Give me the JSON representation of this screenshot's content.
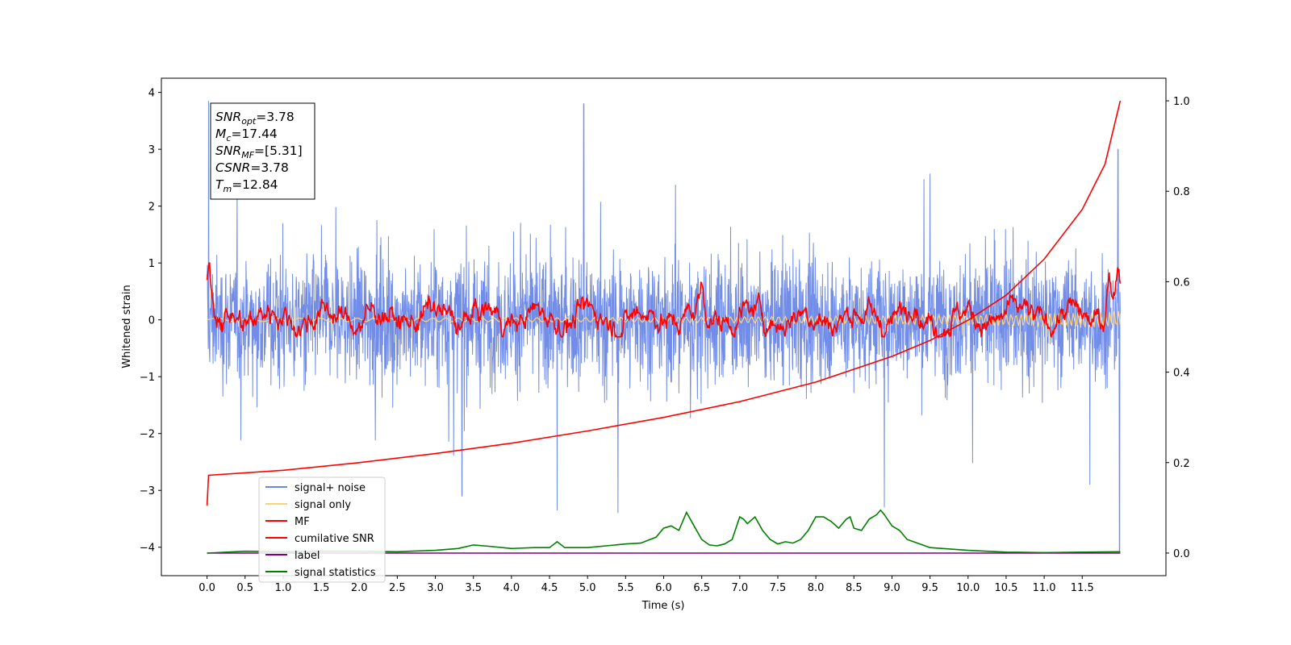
{
  "chart_data": {
    "type": "line",
    "xlabel": "Time (s)",
    "ylabel": "Whitened strain",
    "xlim": [
      -0.6,
      12.6
    ],
    "x_ticks": [
      "0.0",
      "0.5",
      "1.0",
      "1.5",
      "2.0",
      "2.5",
      "3.0",
      "3.5",
      "4.0",
      "4.5",
      "5.0",
      "5.5",
      "6.0",
      "6.5",
      "7.0",
      "7.5",
      "8.0",
      "8.5",
      "9.0",
      "9.5",
      "10.0",
      "10.5",
      "11.0",
      "11.5"
    ],
    "ylim_left": [
      -4.5,
      4.25
    ],
    "y_ticks_left": [
      "−4",
      "−3",
      "−2",
      "−1",
      "0",
      "1",
      "2",
      "3",
      "4"
    ],
    "ylim_right": [
      -0.05,
      1.05
    ],
    "y_ticks_right": [
      "0.0",
      "0.2",
      "0.4",
      "0.6",
      "0.8",
      "1.0"
    ],
    "grid": false,
    "legend_placement": "lower-left",
    "stats_box": [
      {
        "sym": "SNR",
        "sub": "opt",
        "val": "=3.78"
      },
      {
        "sym": "M",
        "sub": "c",
        "val": "=17.44"
      },
      {
        "sym": "SNR",
        "sub": "MF",
        "val": "=[5.31]"
      },
      {
        "sym": "CSNR",
        "sub": "",
        "val": "=3.78"
      },
      {
        "sym": "T",
        "sub": "m",
        "val": "=12.84"
      }
    ],
    "series": [
      {
        "name": "signal+ noise",
        "color": "#6a87e6",
        "axis": "left",
        "start": 0.0,
        "end": 12.0,
        "profile": "noise band centered near 0, bulk roughly -1.7 to 1.7, occasional spikes",
        "spikes": [
          [
            0.02,
            3.85
          ],
          [
            4.95,
            3.8
          ],
          [
            8.9,
            -3.3
          ],
          [
            11.6,
            -2.9
          ],
          [
            11.97,
            3.0
          ],
          [
            11.99,
            -4.1
          ],
          [
            3.35,
            -3.1
          ],
          [
            4.6,
            -3.35
          ],
          [
            5.4,
            -3.4
          ]
        ]
      },
      {
        "name": "signal only",
        "color": "#ffd27a",
        "axis": "left",
        "start": 0.0,
        "end": 12.0,
        "level": 0.0,
        "amplitude_end": 0.12
      },
      {
        "name": "MF",
        "color": "#ff0000",
        "axis": "left",
        "start": 0.0,
        "end": 12.0,
        "profile": "fluctuating around 0, range about -0.3 to 0.5",
        "peaks": [
          [
            0.02,
            0.9
          ],
          [
            6.5,
            0.5
          ],
          [
            9.3,
            0.5
          ],
          [
            11.85,
            0.8
          ],
          [
            11.97,
            1.0
          ]
        ]
      },
      {
        "name": "cumilative SNR",
        "color": "#ff0000",
        "axis": "right",
        "x": [
          0.0,
          0.02,
          1,
          2,
          3,
          4,
          5,
          6,
          7,
          8,
          9,
          9.5,
          10,
          10.5,
          11,
          11.5,
          11.8,
          12.0
        ],
        "y": [
          0.105,
          0.172,
          0.183,
          0.2,
          0.22,
          0.243,
          0.27,
          0.3,
          0.335,
          0.378,
          0.435,
          0.47,
          0.515,
          0.57,
          0.65,
          0.76,
          0.86,
          1.0
        ]
      },
      {
        "name": "label",
        "color": "#800080",
        "axis": "right",
        "x": [
          0,
          12
        ],
        "y": [
          0.0,
          0.0
        ]
      },
      {
        "name": "signal statistics",
        "color": "#008000",
        "axis": "right",
        "x": [
          0,
          0.5,
          1,
          1.5,
          2,
          2.5,
          3,
          3.3,
          3.5,
          3.7,
          4,
          4.3,
          4.5,
          4.6,
          4.7,
          5,
          5.5,
          5.7,
          5.9,
          6,
          6.1,
          6.2,
          6.3,
          6.4,
          6.5,
          6.6,
          6.7,
          6.8,
          6.9,
          7,
          7.05,
          7.1,
          7.2,
          7.3,
          7.4,
          7.5,
          7.6,
          7.7,
          7.8,
          7.9,
          8,
          8.1,
          8.2,
          8.3,
          8.4,
          8.45,
          8.5,
          8.6,
          8.7,
          8.8,
          8.85,
          8.9,
          9,
          9.1,
          9.2,
          9.5,
          10,
          10.5,
          11,
          11.5,
          12
        ],
        "y": [
          0.0,
          0.004,
          0.003,
          0.004,
          0.004,
          0.003,
          0.006,
          0.01,
          0.018,
          0.015,
          0.01,
          0.012,
          0.012,
          0.025,
          0.012,
          0.012,
          0.02,
          0.022,
          0.035,
          0.055,
          0.06,
          0.05,
          0.09,
          0.06,
          0.03,
          0.018,
          0.016,
          0.02,
          0.03,
          0.08,
          0.075,
          0.065,
          0.08,
          0.05,
          0.03,
          0.02,
          0.025,
          0.022,
          0.03,
          0.05,
          0.08,
          0.08,
          0.07,
          0.055,
          0.075,
          0.08,
          0.055,
          0.05,
          0.075,
          0.085,
          0.095,
          0.085,
          0.06,
          0.05,
          0.03,
          0.012,
          0.006,
          0.002,
          0.001,
          0.002,
          0.003
        ]
      }
    ]
  }
}
